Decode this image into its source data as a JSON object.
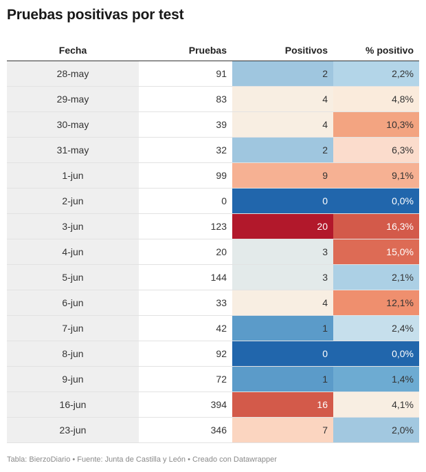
{
  "title": "Pruebas positivas por test",
  "source": "Tabla: BierzoDiario • Fuente: Junta de Castilla y León • Creado con Datawrapper",
  "chart_data": {
    "type": "table",
    "title": "Pruebas positivas por test",
    "columns": [
      "Fecha",
      "Pruebas",
      "Positivos",
      "% positivo"
    ],
    "rows": [
      {
        "fecha": "28-may",
        "pruebas": "91",
        "positivos": "2",
        "pct": "2,2%",
        "pos_color": "#9fc6df",
        "pct_color": "#b3d5e8"
      },
      {
        "fecha": "29-may",
        "pruebas": "83",
        "positivos": "4",
        "pct": "4,8%",
        "pos_color": "#f8eee2",
        "pct_color": "#faebdc"
      },
      {
        "fecha": "30-may",
        "pruebas": "39",
        "positivos": "4",
        "pct": "10,3%",
        "pos_color": "#f8eee2",
        "pct_color": "#f3a481"
      },
      {
        "fecha": "31-may",
        "pruebas": "32",
        "positivos": "2",
        "pct": "6,3%",
        "pos_color": "#9fc6df",
        "pct_color": "#fbdccc"
      },
      {
        "fecha": "1-jun",
        "pruebas": "99",
        "positivos": "9",
        "pct": "9,1%",
        "pos_color": "#f6b193",
        "pct_color": "#f6b193"
      },
      {
        "fecha": "2-jun",
        "pruebas": "0",
        "positivos": "0",
        "pct": "0,0%",
        "pos_color": "#2166ac",
        "pct_color": "#2166ac"
      },
      {
        "fecha": "3-jun",
        "pruebas": "123",
        "positivos": "20",
        "pct": "16,3%",
        "pos_color": "#b2182b",
        "pct_color": "#d35a4a"
      },
      {
        "fecha": "4-jun",
        "pruebas": "20",
        "positivos": "3",
        "pct": "15,0%",
        "pos_color": "#e3eaea",
        "pct_color": "#dd6b55"
      },
      {
        "fecha": "5-jun",
        "pruebas": "144",
        "positivos": "3",
        "pct": "2,1%",
        "pos_color": "#e3eaea",
        "pct_color": "#acd0e5"
      },
      {
        "fecha": "6-jun",
        "pruebas": "33",
        "positivos": "4",
        "pct": "12,1%",
        "pos_color": "#f8eee2",
        "pct_color": "#ef8f6e"
      },
      {
        "fecha": "7-jun",
        "pruebas": "42",
        "positivos": "1",
        "pct": "2,4%",
        "pos_color": "#5b9bc9",
        "pct_color": "#c6dfec"
      },
      {
        "fecha": "8-jun",
        "pruebas": "92",
        "positivos": "0",
        "pct": "0,0%",
        "pos_color": "#2166ac",
        "pct_color": "#2166ac"
      },
      {
        "fecha": "9-jun",
        "pruebas": "72",
        "positivos": "1",
        "pct": "1,4%",
        "pos_color": "#5b9bc9",
        "pct_color": "#6dabd2"
      },
      {
        "fecha": "16-jun",
        "pruebas": "394",
        "positivos": "16",
        "pct": "4,1%",
        "pos_color": "#d35a4a",
        "pct_color": "#f8eee2"
      },
      {
        "fecha": "23-jun",
        "pruebas": "346",
        "positivos": "7",
        "pct": "2,0%",
        "pos_color": "#fbd5c0",
        "pct_color": "#a2c8e0"
      }
    ]
  }
}
